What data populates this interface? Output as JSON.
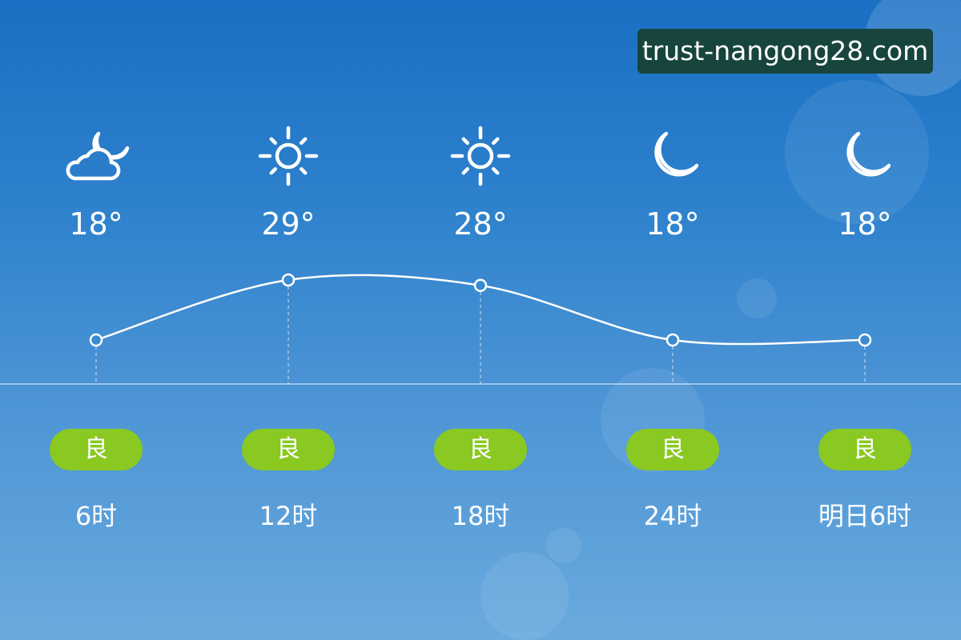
{
  "watermark": "trust-nangong28.com",
  "forecast": [
    {
      "icon": "cloud-moon-icon",
      "temp": 18,
      "temp_label": "18°",
      "aqi": "良",
      "time": "6时"
    },
    {
      "icon": "sun-icon",
      "temp": 29,
      "temp_label": "29°",
      "aqi": "良",
      "time": "12时"
    },
    {
      "icon": "sun-icon",
      "temp": 28,
      "temp_label": "28°",
      "aqi": "良",
      "time": "18时"
    },
    {
      "icon": "moon-icon",
      "temp": 18,
      "temp_label": "18°",
      "aqi": "良",
      "time": "24时"
    },
    {
      "icon": "moon-icon",
      "temp": 18,
      "temp_label": "18°",
      "aqi": "良",
      "time": "明日6时"
    }
  ],
  "colors": {
    "aqi_good": "#8ac822",
    "watermark_bg": "#17453d"
  }
}
